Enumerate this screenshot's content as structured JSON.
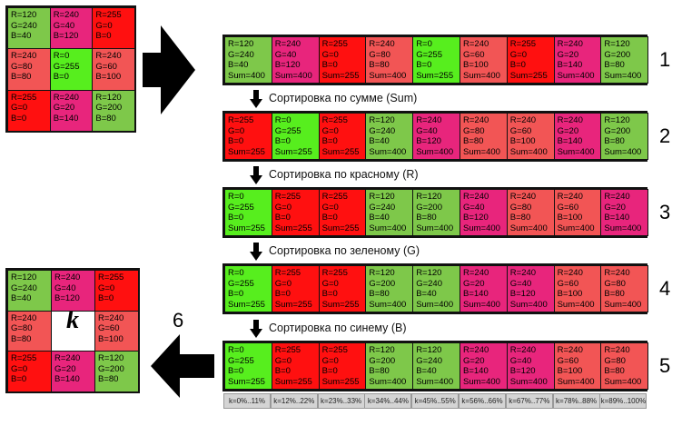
{
  "colors": {
    "red": "#ff1010",
    "green": "#57ee1e",
    "magenta": "#e8257c",
    "salmon": "#f25555",
    "lightgreen": "#7ec84a",
    "border": "#111111",
    "kbox": "#d4d4d4",
    "arrow": "#000000"
  },
  "source_grid": [
    {
      "lines": [
        "R=120",
        "G=240",
        "B=40"
      ],
      "color": "lightgreen"
    },
    {
      "lines": [
        "R=240",
        "G=40",
        "B=120"
      ],
      "color": "magenta"
    },
    {
      "lines": [
        "R=255",
        "G=0",
        "B=0"
      ],
      "color": "red"
    },
    {
      "lines": [
        "R=240",
        "G=80",
        "B=80"
      ],
      "color": "salmon"
    },
    {
      "lines": [
        "R=0",
        "G=255",
        "B=0"
      ],
      "color": "green"
    },
    {
      "lines": [
        "R=240",
        "G=60",
        "B=100"
      ],
      "color": "salmon"
    },
    {
      "lines": [
        "R=255",
        "G=0",
        "B=0"
      ],
      "color": "red"
    },
    {
      "lines": [
        "R=240",
        "G=20",
        "B=140"
      ],
      "color": "magenta"
    },
    {
      "lines": [
        "R=120",
        "G=200",
        "B=80"
      ],
      "color": "lightgreen"
    }
  ],
  "rows": [
    {
      "number": "1",
      "cells": [
        {
          "lines": [
            "R=120",
            "G=240",
            "B=40",
            "Sum=400"
          ],
          "color": "lightgreen"
        },
        {
          "lines": [
            "R=240",
            "G=40",
            "B=120",
            "Sum=400"
          ],
          "color": "magenta"
        },
        {
          "lines": [
            "R=255",
            "G=0",
            "B=0",
            "Sum=255"
          ],
          "color": "red"
        },
        {
          "lines": [
            "R=240",
            "G=80",
            "B=80",
            "Sum=400"
          ],
          "color": "salmon"
        },
        {
          "lines": [
            "R=0",
            "G=255",
            "B=0",
            "Sum=255"
          ],
          "color": "green"
        },
        {
          "lines": [
            "R=240",
            "G=60",
            "B=100",
            "Sum=400"
          ],
          "color": "salmon"
        },
        {
          "lines": [
            "R=255",
            "G=0",
            "B=0",
            "Sum=255"
          ],
          "color": "red"
        },
        {
          "lines": [
            "R=240",
            "G=20",
            "B=140",
            "Sum=400"
          ],
          "color": "magenta"
        },
        {
          "lines": [
            "R=120",
            "G=200",
            "B=80",
            "Sum=400"
          ],
          "color": "lightgreen"
        }
      ]
    },
    {
      "number": "2",
      "cells": [
        {
          "lines": [
            "R=255",
            "G=0",
            "B=0",
            "Sum=255"
          ],
          "color": "red"
        },
        {
          "lines": [
            "R=0",
            "G=255",
            "B=0",
            "Sum=255"
          ],
          "color": "green"
        },
        {
          "lines": [
            "R=255",
            "G=0",
            "B=0",
            "Sum=255"
          ],
          "color": "red"
        },
        {
          "lines": [
            "R=120",
            "G=240",
            "B=40",
            "Sum=400"
          ],
          "color": "lightgreen"
        },
        {
          "lines": [
            "R=240",
            "G=40",
            "B=120",
            "Sum=400"
          ],
          "color": "magenta"
        },
        {
          "lines": [
            "R=240",
            "G=80",
            "B=80",
            "Sum=400"
          ],
          "color": "salmon"
        },
        {
          "lines": [
            "R=240",
            "G=60",
            "B=100",
            "Sum=400"
          ],
          "color": "salmon"
        },
        {
          "lines": [
            "R=240",
            "G=20",
            "B=140",
            "Sum=400"
          ],
          "color": "magenta"
        },
        {
          "lines": [
            "R=120",
            "G=200",
            "B=80",
            "Sum=400"
          ],
          "color": "lightgreen"
        }
      ]
    },
    {
      "number": "3",
      "cells": [
        {
          "lines": [
            "R=0",
            "G=255",
            "B=0",
            "Sum=255"
          ],
          "color": "green"
        },
        {
          "lines": [
            "R=255",
            "G=0",
            "B=0",
            "Sum=255"
          ],
          "color": "red"
        },
        {
          "lines": [
            "R=255",
            "G=0",
            "B=0",
            "Sum=255"
          ],
          "color": "red"
        },
        {
          "lines": [
            "R=120",
            "G=240",
            "B=40",
            "Sum=400"
          ],
          "color": "lightgreen"
        },
        {
          "lines": [
            "R=120",
            "G=200",
            "B=80",
            "Sum=400"
          ],
          "color": "lightgreen"
        },
        {
          "lines": [
            "R=240",
            "G=40",
            "B=120",
            "Sum=400"
          ],
          "color": "magenta"
        },
        {
          "lines": [
            "R=240",
            "G=80",
            "B=80",
            "Sum=400"
          ],
          "color": "salmon"
        },
        {
          "lines": [
            "R=240",
            "G=60",
            "B=100",
            "Sum=400"
          ],
          "color": "salmon"
        },
        {
          "lines": [
            "R=240",
            "G=20",
            "B=140",
            "Sum=400"
          ],
          "color": "magenta"
        }
      ]
    },
    {
      "number": "4",
      "cells": [
        {
          "lines": [
            "R=0",
            "G=255",
            "B=0",
            "Sum=255"
          ],
          "color": "green"
        },
        {
          "lines": [
            "R=255",
            "G=0",
            "B=0",
            "Sum=255"
          ],
          "color": "red"
        },
        {
          "lines": [
            "R=255",
            "G=0",
            "B=0",
            "Sum=255"
          ],
          "color": "red"
        },
        {
          "lines": [
            "R=120",
            "G=200",
            "B=80",
            "Sum=400"
          ],
          "color": "lightgreen"
        },
        {
          "lines": [
            "R=120",
            "G=240",
            "B=40",
            "Sum=400"
          ],
          "color": "lightgreen"
        },
        {
          "lines": [
            "R=240",
            "G=20",
            "B=140",
            "Sum=400"
          ],
          "color": "magenta"
        },
        {
          "lines": [
            "R=240",
            "G=40",
            "B=120",
            "Sum=400"
          ],
          "color": "magenta"
        },
        {
          "lines": [
            "R=240",
            "G=60",
            "B=100",
            "Sum=400"
          ],
          "color": "salmon"
        },
        {
          "lines": [
            "R=240",
            "G=80",
            "B=80",
            "Sum=400"
          ],
          "color": "salmon"
        }
      ]
    },
    {
      "number": "5",
      "cells": [
        {
          "lines": [
            "R=0",
            "G=255",
            "B=0",
            "Sum=255"
          ],
          "color": "green"
        },
        {
          "lines": [
            "R=255",
            "G=0",
            "B=0",
            "Sum=255"
          ],
          "color": "red"
        },
        {
          "lines": [
            "R=255",
            "G=0",
            "B=0",
            "Sum=255"
          ],
          "color": "red"
        },
        {
          "lines": [
            "R=120",
            "G=200",
            "B=80",
            "Sum=400"
          ],
          "color": "lightgreen"
        },
        {
          "lines": [
            "R=120",
            "G=240",
            "B=40",
            "Sum=400"
          ],
          "color": "lightgreen"
        },
        {
          "lines": [
            "R=240",
            "G=20",
            "B=140",
            "Sum=400"
          ],
          "color": "magenta"
        },
        {
          "lines": [
            "R=240",
            "G=40",
            "B=120",
            "Sum=400"
          ],
          "color": "magenta"
        },
        {
          "lines": [
            "R=240",
            "G=60",
            "B=100",
            "Sum=400"
          ],
          "color": "salmon"
        },
        {
          "lines": [
            "R=240",
            "G=80",
            "B=80",
            "Sum=400"
          ],
          "color": "salmon"
        }
      ]
    }
  ],
  "sort_labels": [
    "Сортировка по сумме (Sum)",
    "Сортировка по красному (R)",
    "Сортировка по зеленому (G)",
    "Сортировка по синему (B)"
  ],
  "k_ranges": [
    "k=0%..11%",
    "k=12%..22%",
    "k=23%..33%",
    "k=34%..44%",
    "k=45%..55%",
    "k=56%..66%",
    "k=67%..77%",
    "k=78%..88%",
    "k=89%..100%"
  ],
  "result_grid": [
    {
      "lines": [
        "R=120",
        "G=240",
        "B=40"
      ],
      "color": "lightgreen"
    },
    {
      "lines": [
        "R=240",
        "G=40",
        "B=120"
      ],
      "color": "magenta"
    },
    {
      "lines": [
        "R=255",
        "G=0",
        "B=0"
      ],
      "color": "red"
    },
    {
      "lines": [
        "R=240",
        "G=80",
        "B=80"
      ],
      "color": "salmon"
    },
    {
      "lines": [],
      "color": "white",
      "center": "k"
    },
    {
      "lines": [
        "R=240",
        "G=60",
        "B=100"
      ],
      "color": "salmon"
    },
    {
      "lines": [
        "R=255",
        "G=0",
        "B=0"
      ],
      "color": "red"
    },
    {
      "lines": [
        "R=240",
        "G=20",
        "B=140"
      ],
      "color": "magenta"
    },
    {
      "lines": [
        "R=120",
        "G=200",
        "B=80"
      ],
      "color": "lightgreen"
    }
  ],
  "step_label": "6",
  "center_label": "k"
}
